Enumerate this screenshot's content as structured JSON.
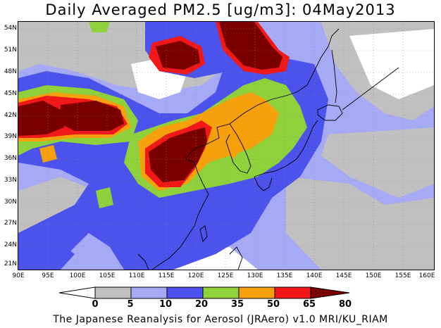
{
  "title": "Daily Averaged PM2.5 [ug/m3]: 04May2013",
  "credit": "The Japanese Reanalysis for Aerosol (JRAero) v1.0 MRI/KU_RIAM",
  "lat_labels": [
    "54N",
    "51N",
    "48N",
    "45N",
    "42N",
    "39N",
    "36N",
    "33N",
    "30N",
    "27N",
    "24N",
    "21N"
  ],
  "lon_labels": [
    "90E",
    "95E",
    "100E",
    "105E",
    "110E",
    "115E",
    "120E",
    "125E",
    "130E",
    "135E",
    "140E",
    "145E",
    "150E",
    "155E",
    "160E"
  ],
  "colorbar": {
    "labels": [
      "0",
      "5",
      "10",
      "20",
      "35",
      "50",
      "65",
      "80"
    ],
    "colors": [
      "#ffffff",
      "#c0c0c0",
      "#a6aaf4",
      "#4c52ec",
      "#8fd13a",
      "#f6a00c",
      "#f01818",
      "#7a0000"
    ]
  },
  "palette": {
    "c0": "#ffffff",
    "c5": "#c0c0c0",
    "c10": "#a6aaf4",
    "c20": "#4c52ec",
    "c35": "#8fd13a",
    "c50": "#f6a00c",
    "c65": "#f01818",
    "c80": "#7a0000"
  }
}
